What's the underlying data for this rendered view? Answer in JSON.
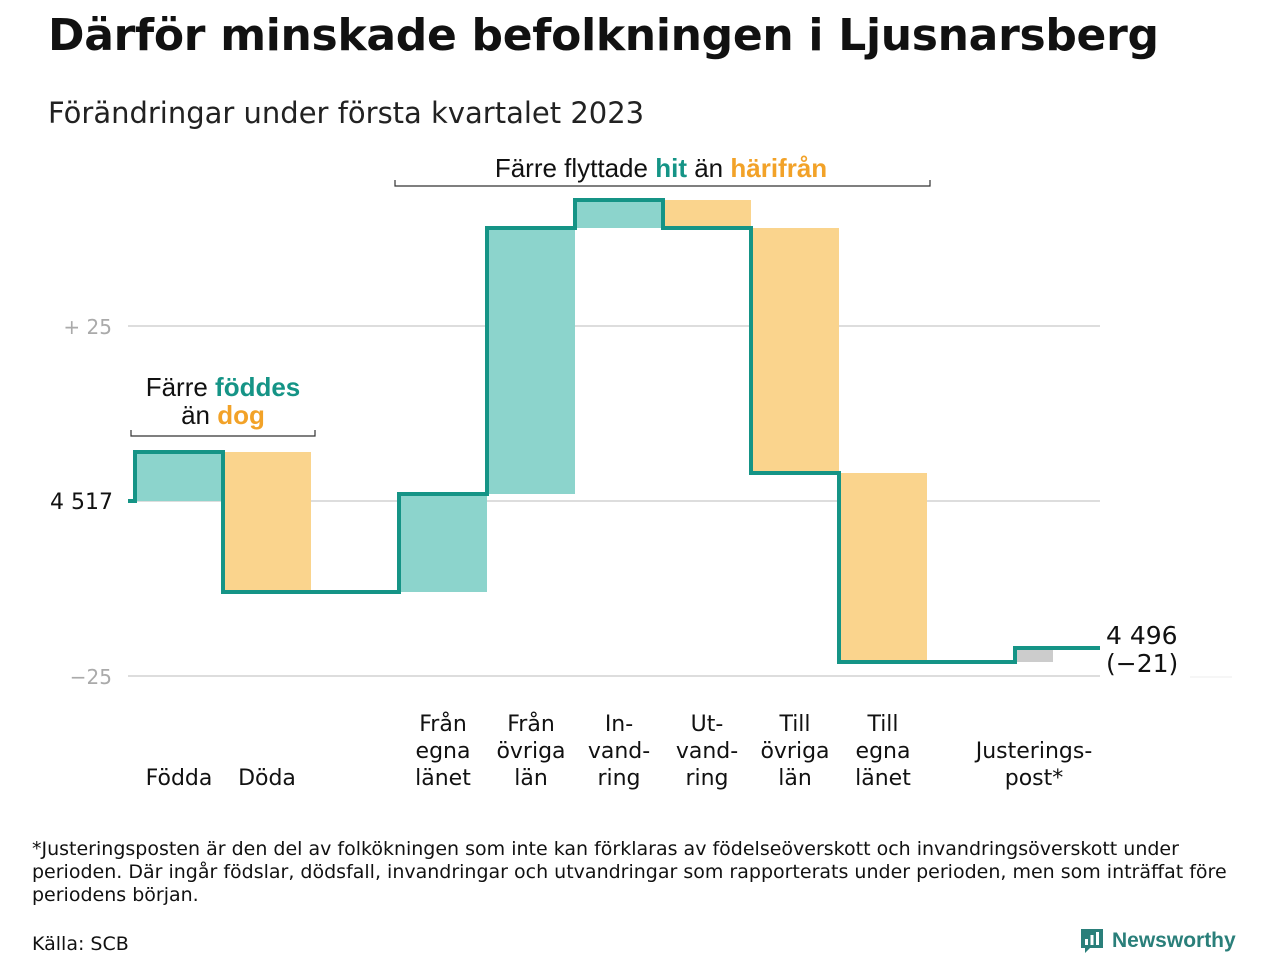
{
  "title": "Därför minskade befolkningen i Ljusnarsberg",
  "subtitle": "Förändringar under första kvartalet 2023",
  "footnote": "*Justeringsposten är den del av folkökningen som inte kan förklaras av födelseöverskott och invandringsöverskott under perioden. Där ingår födslar, dödsfall, invandringar och utvandringar som rapporterats under perioden, men som inträffat före periodens början.",
  "source": "Källa: SCB",
  "logo_text": "Newsworthy",
  "colors": {
    "increase": "#8cd4cc",
    "decrease": "#fad48d",
    "adjustment": "#cccccc",
    "line": "#159486",
    "teal_text": "#159486",
    "orange_text": "#f2a228",
    "grid": "#dddddd"
  },
  "annotations": {
    "births_top": [
      "Färre ",
      "föddes"
    ],
    "births_bottom": [
      "än ",
      "dog"
    ],
    "moves": [
      "Färre flyttade ",
      "hit",
      " än ",
      "härifrån"
    ]
  },
  "chart_data": {
    "type": "waterfall",
    "title": "Därför minskade befolkningen i Ljusnarsberg",
    "start_value": 4517,
    "start_label": "4 517",
    "end_value": 4496,
    "end_label": "4 496",
    "end_change_label": "(−21)",
    "y_ticks": [
      {
        "value": 25,
        "label": "+ 25"
      },
      {
        "value": -25,
        "label": "−25"
      }
    ],
    "ylim": [
      -25,
      25
    ],
    "grid": true,
    "categories": [
      "Födda",
      "Döda",
      "Från egna länet",
      "Från övriga län",
      "In-vandring",
      "Ut-vandring",
      "Till övriga län",
      "Till egna länet",
      "Justeringspost*"
    ],
    "category_labels": [
      [
        "Födda"
      ],
      [
        "Döda"
      ],
      [
        "Från",
        "egna",
        "länet"
      ],
      [
        "Från",
        "övriga",
        "län"
      ],
      [
        "In-",
        "vand-",
        "ring"
      ],
      [
        "Ut-",
        "vand-",
        "ring"
      ],
      [
        "Till",
        "övriga",
        "län"
      ],
      [
        "Till",
        "egna",
        "länet"
      ],
      [
        "Justerings-",
        "post*"
      ]
    ],
    "values": [
      7,
      -20,
      14,
      38,
      4,
      -4,
      -35,
      -27,
      2
    ],
    "kinds": [
      "in",
      "out",
      "in",
      "in",
      "in",
      "out",
      "out",
      "out",
      "adj"
    ]
  }
}
